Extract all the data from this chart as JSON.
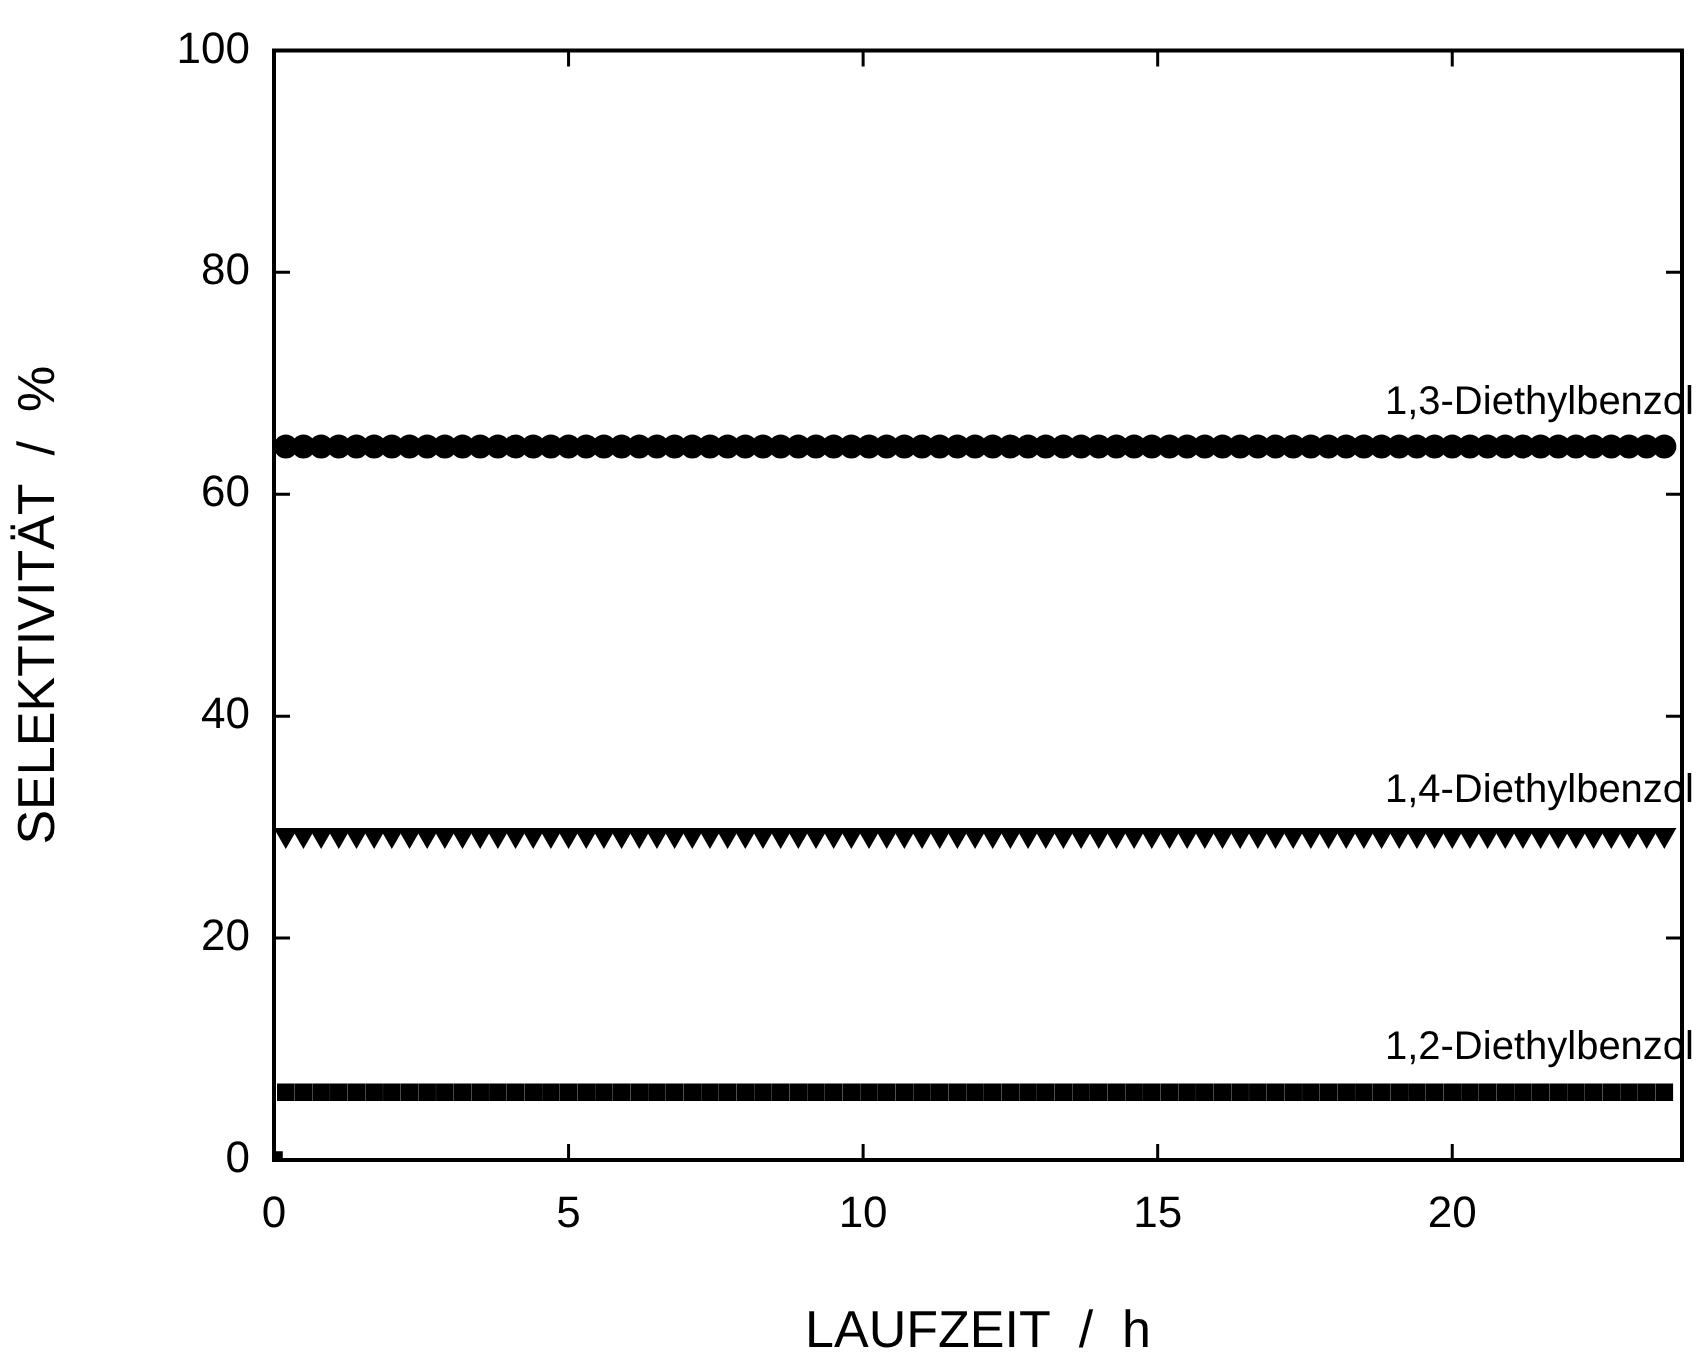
{
  "chart_data": {
    "type": "scatter",
    "xlabel": "LAUFZEIT  /  h",
    "ylabel": "SELEKTIVITÄT  /  %",
    "xlim": [
      0,
      23.9
    ],
    "ylim": [
      0,
      100
    ],
    "xticks": [
      0,
      5,
      10,
      15,
      20
    ],
    "yticks": [
      0,
      20,
      40,
      60,
      80,
      100
    ],
    "grid": false,
    "legend": false,
    "x": [
      0,
      0.2,
      0.5,
      0.8,
      1.1,
      1.4,
      1.7,
      2,
      2.3,
      2.6,
      2.9,
      3.2,
      3.5,
      3.8,
      4.1,
      4.4,
      4.7,
      5,
      5.3,
      5.6,
      5.9,
      6.2,
      6.5,
      6.8,
      7.1,
      7.4,
      7.7,
      8,
      8.3,
      8.6,
      8.9,
      9.2,
      9.5,
      9.8,
      10.1,
      10.4,
      10.7,
      11,
      11.3,
      11.6,
      11.9,
      12.2,
      12.5,
      12.8,
      13.1,
      13.4,
      13.7,
      14,
      14.3,
      14.6,
      14.9,
      15.2,
      15.5,
      15.8,
      16.1,
      16.4,
      16.7,
      17,
      17.3,
      17.6,
      17.9,
      18.2,
      18.5,
      18.8,
      19.1,
      19.4,
      19.7,
      20,
      20.3,
      20.6,
      20.9,
      21.2,
      21.5,
      21.8,
      22.1,
      22.4,
      22.7,
      23,
      23.3,
      23.6
    ],
    "series": [
      {
        "name": "1,3-Diethylbenzol",
        "color": "#000000",
        "marker": "circle",
        "values": [
          null,
          64.3,
          64.3,
          64.3,
          64.3,
          64.3,
          64.3,
          64.3,
          64.3,
          64.3,
          64.3,
          64.3,
          64.3,
          64.3,
          64.3,
          64.3,
          64.3,
          64.3,
          64.3,
          64.3,
          64.3,
          64.3,
          64.3,
          64.3,
          64.3,
          64.3,
          64.3,
          64.3,
          64.3,
          64.3,
          64.3,
          64.3,
          64.3,
          64.3,
          64.3,
          64.3,
          64.3,
          64.3,
          64.3,
          64.3,
          64.3,
          64.3,
          64.3,
          64.3,
          64.3,
          64.3,
          64.3,
          64.3,
          64.3,
          64.3,
          64.3,
          64.3,
          64.3,
          64.3,
          64.3,
          64.3,
          64.3,
          64.3,
          64.3,
          64.3,
          64.3,
          64.3,
          64.3,
          64.3,
          64.3,
          64.3,
          64.3,
          64.3,
          64.3,
          64.3,
          64.3,
          64.3,
          64.3,
          64.3,
          64.3,
          64.3,
          64.3,
          64.3,
          64.3,
          64.3
        ]
      },
      {
        "name": "1,4-Diethylbenzol",
        "color": "#000000",
        "marker": "triangle",
        "values": [
          null,
          29.3,
          29.3,
          29.3,
          29.3,
          29.3,
          29.3,
          29.3,
          29.3,
          29.3,
          29.3,
          29.3,
          29.3,
          29.3,
          29.3,
          29.3,
          29.3,
          29.3,
          29.3,
          29.3,
          29.3,
          29.3,
          29.3,
          29.3,
          29.3,
          29.3,
          29.3,
          29.3,
          29.3,
          29.3,
          29.3,
          29.3,
          29.3,
          29.3,
          29.3,
          29.3,
          29.3,
          29.3,
          29.3,
          29.3,
          29.3,
          29.3,
          29.3,
          29.3,
          29.3,
          29.3,
          29.3,
          29.3,
          29.3,
          29.3,
          29.3,
          29.3,
          29.3,
          29.3,
          29.3,
          29.3,
          29.3,
          29.3,
          29.3,
          29.3,
          29.3,
          29.3,
          29.3,
          29.3,
          29.3,
          29.3,
          29.3,
          29.3,
          29.3,
          29.3,
          29.3,
          29.3,
          29.3,
          29.3,
          29.3,
          29.3,
          29.3,
          29.3,
          29.3,
          29.3
        ]
      },
      {
        "name": "1,2-Diethylbenzol",
        "color": "#000000",
        "marker": "square",
        "values": [
          0,
          6.1,
          6.1,
          6.1,
          6.1,
          6.1,
          6.1,
          6.1,
          6.1,
          6.1,
          6.1,
          6.1,
          6.1,
          6.1,
          6.1,
          6.1,
          6.1,
          6.1,
          6.1,
          6.1,
          6.1,
          6.1,
          6.1,
          6.1,
          6.1,
          6.1,
          6.1,
          6.1,
          6.1,
          6.1,
          6.1,
          6.1,
          6.1,
          6.1,
          6.1,
          6.1,
          6.1,
          6.1,
          6.1,
          6.1,
          6.1,
          6.1,
          6.1,
          6.1,
          6.1,
          6.1,
          6.1,
          6.1,
          6.1,
          6.1,
          6.1,
          6.1,
          6.1,
          6.1,
          6.1,
          6.1,
          6.1,
          6.1,
          6.1,
          6.1,
          6.1,
          6.1,
          6.1,
          6.1,
          6.1,
          6.1,
          6.1,
          6.1,
          6.1,
          6.1,
          6.1,
          6.1,
          6.1,
          6.1,
          6.1,
          6.1,
          6.1,
          6.1,
          6.1,
          6.1
        ]
      }
    ]
  }
}
